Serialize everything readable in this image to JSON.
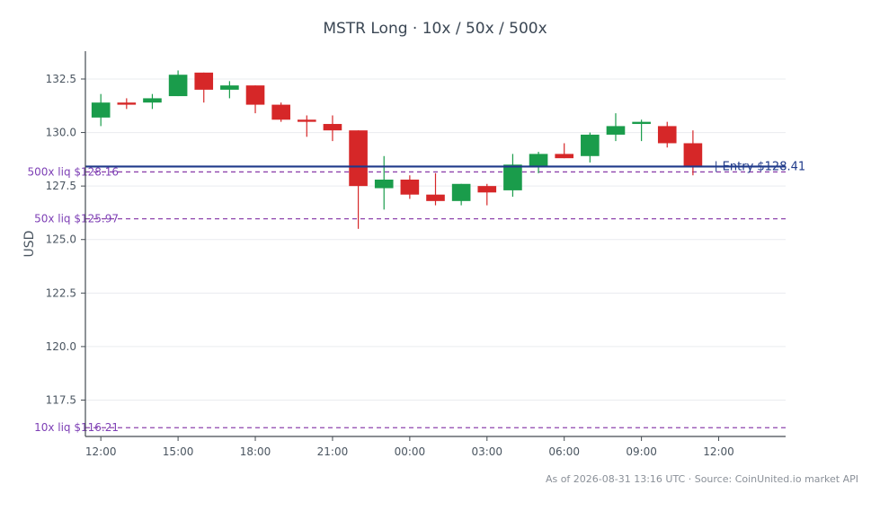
{
  "chart_data": {
    "type": "candlestick",
    "title": "MSTR Long · 10x / 50x / 500x",
    "ylabel": "USD",
    "ylim": [
      115.8,
      133.8
    ],
    "yticks": [
      117.5,
      120.0,
      122.5,
      125.0,
      127.5,
      130.0,
      132.5
    ],
    "ytick_labels": [
      "117.5",
      "120.0",
      "122.5",
      "125.0",
      "127.5",
      "130.0",
      "132.5"
    ],
    "x_range": [
      -0.6,
      26.6
    ],
    "xticks": [
      0,
      3,
      6,
      9,
      12,
      15,
      18,
      21,
      24
    ],
    "xtick_labels": [
      "12:00",
      "15:00",
      "18:00",
      "21:00",
      "00:00",
      "03:00",
      "06:00",
      "09:00",
      "12:00"
    ],
    "candles": [
      {
        "o": 130.7,
        "h": 131.8,
        "l": 130.3,
        "c": 131.4
      },
      {
        "o": 131.4,
        "h": 131.6,
        "l": 131.1,
        "c": 131.3
      },
      {
        "o": 131.4,
        "h": 131.8,
        "l": 131.1,
        "c": 131.6
      },
      {
        "o": 131.7,
        "h": 132.9,
        "l": 131.7,
        "c": 132.7
      },
      {
        "o": 132.8,
        "h": 132.8,
        "l": 131.4,
        "c": 132.0
      },
      {
        "o": 132.0,
        "h": 132.4,
        "l": 131.6,
        "c": 132.2
      },
      {
        "o": 132.2,
        "h": 132.2,
        "l": 130.9,
        "c": 131.3
      },
      {
        "o": 131.3,
        "h": 131.4,
        "l": 130.5,
        "c": 130.6
      },
      {
        "o": 130.6,
        "h": 130.8,
        "l": 129.8,
        "c": 130.5
      },
      {
        "o": 130.4,
        "h": 130.8,
        "l": 129.6,
        "c": 130.1
      },
      {
        "o": 130.1,
        "h": 130.1,
        "l": 125.5,
        "c": 127.5
      },
      {
        "o": 127.4,
        "h": 128.9,
        "l": 126.4,
        "c": 127.8
      },
      {
        "o": 127.8,
        "h": 128.0,
        "l": 126.9,
        "c": 127.1
      },
      {
        "o": 127.1,
        "h": 128.1,
        "l": 126.6,
        "c": 126.8
      },
      {
        "o": 126.8,
        "h": 127.6,
        "l": 126.6,
        "c": 127.6
      },
      {
        "o": 127.5,
        "h": 127.6,
        "l": 126.6,
        "c": 127.2
      },
      {
        "o": 127.3,
        "h": 129.0,
        "l": 127.0,
        "c": 128.5
      },
      {
        "o": 128.4,
        "h": 129.1,
        "l": 128.1,
        "c": 129.0
      },
      {
        "o": 129.0,
        "h": 129.5,
        "l": 128.8,
        "c": 128.8
      },
      {
        "o": 128.9,
        "h": 130.0,
        "l": 128.6,
        "c": 129.9
      },
      {
        "o": 129.9,
        "h": 130.9,
        "l": 129.6,
        "c": 130.3
      },
      {
        "o": 130.4,
        "h": 130.6,
        "l": 129.6,
        "c": 130.5
      },
      {
        "o": 130.3,
        "h": 130.5,
        "l": 129.3,
        "c": 129.5
      },
      {
        "o": 129.5,
        "h": 130.1,
        "l": 128.0,
        "c": 128.4
      }
    ],
    "entry": {
      "value": 128.41,
      "label": "Entry $128.41",
      "color": "#1f3a8a"
    },
    "liquidation_levels": [
      {
        "value": 128.16,
        "label": "500x liq $128.16"
      },
      {
        "value": 125.97,
        "label": "50x liq $125.97"
      },
      {
        "value": 116.21,
        "label": "10x liq $116.21"
      }
    ],
    "colors": {
      "up": "#1a9c4b",
      "down": "#d62728",
      "liq": "#8e44ad",
      "grid": "#eaecef",
      "axis": "#444b52"
    },
    "grid": true
  },
  "footer": {
    "note": "As of 2026-08-31 13:16 UTC · Source: CoinUnited.io market API"
  }
}
